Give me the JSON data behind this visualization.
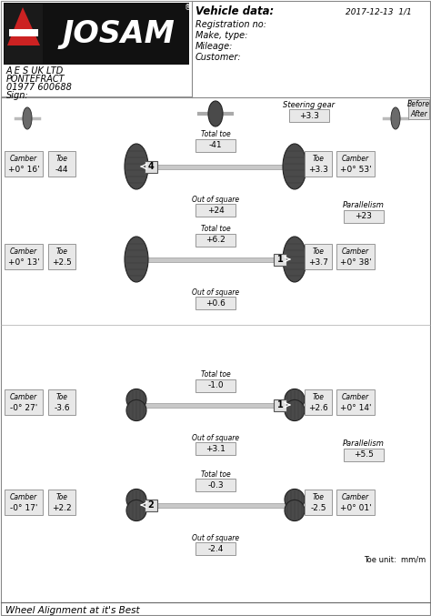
{
  "company_name": "A E S UK LTD",
  "company_line2": "PONTEFRACT",
  "company_line3": "01977 600688",
  "company_line4": "Sign:",
  "vehicle_data_label": "Vehicle data:",
  "date": "2017-12-13  1/1",
  "reg_label": "Registration no:",
  "make_label": "Make, type:",
  "mileage_label": "Mileage:",
  "customer_label": "Customer:",
  "before_after_0": "Before",
  "before_after_1": "After",
  "steering_gear_label": "Steering gear",
  "steering_gear_value": "+3.3",
  "axle_group1": {
    "axle1": {
      "label": "4",
      "steering_side": "left",
      "camber_left_label": "Camber",
      "camber_left": "+0° 16'",
      "toe_left_label": "Toe",
      "toe_left": "-44",
      "total_toe_label": "Total toe",
      "total_toe": "-41",
      "out_of_square_label": "Out of square",
      "out_of_square": "+24",
      "toe_right_label": "Toe",
      "toe_right": "+3.3",
      "camber_right_label": "Camber",
      "camber_right": "+0° 53'",
      "parallelism_label": "Parallelism",
      "parallelism": "+23"
    },
    "axle2": {
      "label": "1",
      "steering_side": "right",
      "camber_left_label": "Camber",
      "camber_left": "+0° 13'",
      "toe_left_label": "Toe",
      "toe_left": "+2.5",
      "total_toe_label": "Total toe",
      "total_toe": "+6.2",
      "out_of_square_label": "Out of square",
      "out_of_square": "+0.6",
      "toe_right_label": "Toe",
      "toe_right": "+3.7",
      "camber_right_label": "Camber",
      "camber_right": "+0° 38'"
    }
  },
  "axle_group2": {
    "axle1": {
      "label": "1",
      "steering_side": "right",
      "camber_left_label": "Camber",
      "camber_left": "-0° 27'",
      "toe_left_label": "Toe",
      "toe_left": "-3.6",
      "total_toe_label": "Total toe",
      "total_toe": "-1.0",
      "out_of_square_label": "Out of square",
      "out_of_square": "+3.1",
      "toe_right_label": "Toe",
      "toe_right": "+2.6",
      "camber_right_label": "Camber",
      "camber_right": "+0° 14'",
      "parallelism_label": "Parallelism",
      "parallelism": "+5.5"
    },
    "axle2": {
      "label": "2",
      "steering_side": "left",
      "camber_left_label": "Camber",
      "camber_left": "-0° 17'",
      "toe_left_label": "Toe",
      "toe_left": "+2.2",
      "total_toe_label": "Total toe",
      "total_toe": "-0.3",
      "out_of_square_label": "Out of square",
      "out_of_square": "-2.4",
      "toe_right_label": "Toe",
      "toe_right": "-2.5",
      "camber_right_label": "Camber",
      "camber_right": "+0° 01'"
    }
  },
  "toe_unit": "Toe unit:  mm/m",
  "footer": "Wheel Alignment at it's Best"
}
